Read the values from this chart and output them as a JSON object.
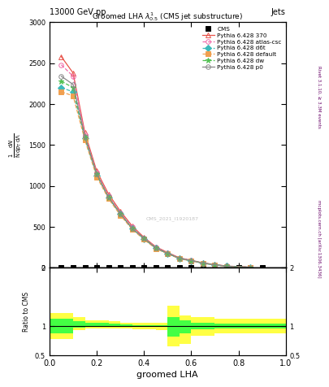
{
  "header_left": "13000 GeV pp",
  "header_right": "Jets",
  "plot_title": "Groomed LHA $\\lambda^{1}_{0.5}$ (CMS jet substructure)",
  "xlabel": "groomed LHA",
  "ylabel_lines": [
    "mathrm d^{2}N",
    "mathrm d p_{T} mathrm d{\\Lambda}",
    "mathrm{dN}",
    "mathrm{d}p_T\\mathrm{d}\\Lambda"
  ],
  "right_label_top": "Rivet 3.1.10, ≥ 3.3M events",
  "right_label_bottom": "mcplots.cern.ch [arXiv:1306.3436]",
  "watermark": "CMS_2021_I1920187",
  "series": [
    {
      "label": "CMS",
      "color": "#000000",
      "marker": "s",
      "linestyle": "none",
      "fillstyle": "full",
      "x": [
        0.05,
        0.1,
        0.15,
        0.2,
        0.25,
        0.3,
        0.35,
        0.4,
        0.45,
        0.5,
        0.55,
        0.6,
        0.65,
        0.7,
        0.75,
        0.8,
        0.85,
        0.9
      ],
      "y": [
        0,
        0,
        0,
        0,
        0,
        0,
        0,
        0,
        0,
        0,
        0,
        0,
        0,
        0,
        0,
        0,
        0,
        0
      ],
      "is_data": true
    },
    {
      "label": "Pythia 6.428 370",
      "color": "#e8534a",
      "marker": "^",
      "linestyle": "-",
      "fillstyle": "none",
      "x": [
        0.05,
        0.1,
        0.15,
        0.2,
        0.25,
        0.3,
        0.35,
        0.4,
        0.45,
        0.5,
        0.55,
        0.6,
        0.65,
        0.7,
        0.75,
        0.85
      ],
      "y": [
        2580,
        2380,
        1650,
        1180,
        900,
        690,
        510,
        370,
        255,
        185,
        120,
        90,
        58,
        38,
        20,
        5
      ],
      "is_data": false
    },
    {
      "label": "Pythia 6.428 atlas-csc",
      "color": "#f06caa",
      "marker": "o",
      "linestyle": "--",
      "fillstyle": "none",
      "x": [
        0.05,
        0.1,
        0.15,
        0.2,
        0.25,
        0.3,
        0.35,
        0.4,
        0.45,
        0.5,
        0.55,
        0.6,
        0.65,
        0.7,
        0.75,
        0.85
      ],
      "y": [
        2480,
        2340,
        1620,
        1160,
        875,
        670,
        495,
        360,
        248,
        180,
        116,
        87,
        56,
        36,
        19,
        5
      ],
      "is_data": false
    },
    {
      "label": "Pythia 6.428 d6t",
      "color": "#3dbaba",
      "marker": "D",
      "linestyle": "--",
      "fillstyle": "full",
      "x": [
        0.05,
        0.1,
        0.15,
        0.2,
        0.25,
        0.3,
        0.35,
        0.4,
        0.45,
        0.5,
        0.55,
        0.6,
        0.65,
        0.7,
        0.75,
        0.85
      ],
      "y": [
        2200,
        2150,
        1580,
        1130,
        855,
        655,
        480,
        352,
        238,
        172,
        112,
        84,
        54,
        34,
        17,
        4
      ],
      "is_data": false
    },
    {
      "label": "Pythia 6.428 default",
      "color": "#f0a050",
      "marker": "s",
      "linestyle": "--",
      "fillstyle": "full",
      "x": [
        0.05,
        0.1,
        0.15,
        0.2,
        0.25,
        0.3,
        0.35,
        0.4,
        0.45,
        0.5,
        0.55,
        0.6,
        0.65,
        0.7,
        0.75,
        0.85
      ],
      "y": [
        2150,
        2100,
        1560,
        1110,
        842,
        642,
        468,
        345,
        232,
        169,
        109,
        83,
        53,
        33,
        16,
        4
      ],
      "is_data": false
    },
    {
      "label": "Pythia 6.428 dw",
      "color": "#50c050",
      "marker": "*",
      "linestyle": "--",
      "fillstyle": "full",
      "x": [
        0.05,
        0.1,
        0.15,
        0.2,
        0.25,
        0.3,
        0.35,
        0.4,
        0.45,
        0.5,
        0.55,
        0.6,
        0.65,
        0.7,
        0.75,
        0.85
      ],
      "y": [
        2280,
        2200,
        1590,
        1140,
        860,
        660,
        478,
        356,
        240,
        174,
        113,
        85,
        55,
        35,
        17,
        4.5
      ],
      "is_data": false
    },
    {
      "label": "Pythia 6.428 p0",
      "color": "#888888",
      "marker": "o",
      "linestyle": "-",
      "fillstyle": "none",
      "x": [
        0.05,
        0.1,
        0.15,
        0.2,
        0.25,
        0.3,
        0.35,
        0.4,
        0.45,
        0.5,
        0.55,
        0.6,
        0.65,
        0.7,
        0.75,
        0.85
      ],
      "y": [
        2340,
        2240,
        1600,
        1145,
        862,
        662,
        480,
        358,
        241,
        175,
        114,
        86,
        55,
        35,
        17,
        5
      ],
      "is_data": false
    }
  ],
  "ratio_edges": [
    0.0,
    0.05,
    0.1,
    0.15,
    0.2,
    0.25,
    0.3,
    0.35,
    0.4,
    0.45,
    0.5,
    0.55,
    0.6,
    0.65,
    0.7,
    0.8,
    0.9,
    1.0
  ],
  "ratio_yellow_lo": [
    0.78,
    0.78,
    0.93,
    0.96,
    0.96,
    0.96,
    0.96,
    0.95,
    0.94,
    0.93,
    0.65,
    0.7,
    0.83,
    0.83,
    0.87,
    0.87,
    0.87,
    0.87
  ],
  "ratio_yellow_hi": [
    1.22,
    1.22,
    1.15,
    1.1,
    1.1,
    1.08,
    1.06,
    1.06,
    1.06,
    1.06,
    1.35,
    1.18,
    1.15,
    1.15,
    1.12,
    1.12,
    1.12,
    1.12
  ],
  "ratio_green_lo": [
    0.88,
    0.88,
    0.97,
    0.99,
    0.99,
    0.99,
    0.99,
    0.98,
    0.98,
    0.98,
    0.82,
    0.88,
    0.94,
    0.94,
    0.96,
    0.96,
    0.96,
    0.96
  ],
  "ratio_green_hi": [
    1.12,
    1.12,
    1.08,
    1.05,
    1.05,
    1.04,
    1.03,
    1.02,
    1.02,
    1.02,
    1.15,
    1.1,
    1.05,
    1.05,
    1.04,
    1.04,
    1.04,
    1.04
  ],
  "ylim_main": [
    0,
    3000
  ],
  "ylim_ratio": [
    0.5,
    2.0
  ],
  "xlim": [
    0.0,
    1.0
  ],
  "yticks_main": [
    0,
    500,
    1000,
    1500,
    2000,
    2500,
    3000
  ],
  "yticks_ratio": [
    0.5,
    1.0,
    2.0
  ],
  "bg_color": "#ffffff"
}
